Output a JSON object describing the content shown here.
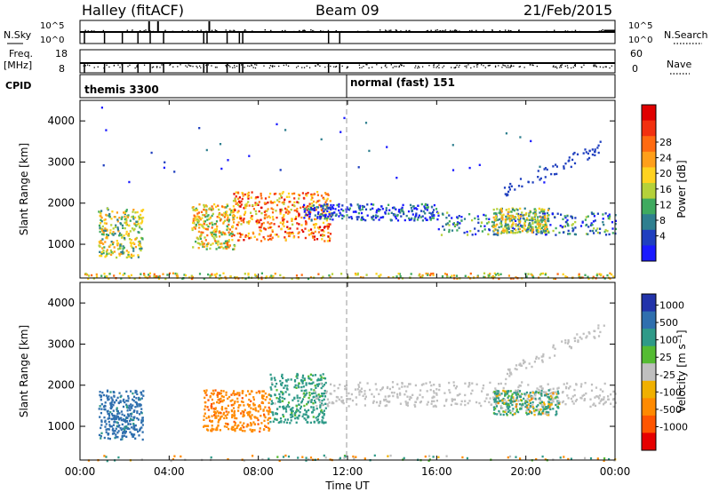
{
  "header": {
    "radar": "Halley (fitACF)",
    "beam": "Beam 09",
    "date": "21/Feb/2015"
  },
  "strips": {
    "nsky_label": "N.Sky",
    "nsky_ticks": [
      "10^5",
      "10^0"
    ],
    "nsearch_label": "N.Search",
    "nsearch_ticks": [
      "10^5",
      "10^0"
    ],
    "freq_label": "Freq.",
    "freq_unit": "[MHz]",
    "freq_ticks": [
      "18",
      "8"
    ],
    "nave_label": "Nave",
    "nave_ticks": [
      "60",
      "0"
    ],
    "cpid_label": "CPID",
    "cpid_segments": [
      {
        "name": "themis 3300",
        "start_h": 0.0
      },
      {
        "name": "normal (fast) 151",
        "start_h": 12.0
      }
    ]
  },
  "axes": {
    "xlabel": "Time UT",
    "x_ticks": [
      "00:00",
      "04:00",
      "08:00",
      "12:00",
      "16:00",
      "20:00",
      "00:00"
    ],
    "ylabel": "Slant Range [km]",
    "y_ticks": [
      "1000",
      "2000",
      "3000",
      "4000"
    ]
  },
  "colorbars": {
    "power": {
      "label": "Power [dB]",
      "ticks": [
        "4",
        "8",
        "12",
        "16",
        "20",
        "24",
        "28"
      ],
      "colors": [
        "#1a1aff",
        "#1f3fbf",
        "#2f7f8f",
        "#3faa5f",
        "#b5d13a",
        "#ffd21f",
        "#ff9f1a",
        "#ff6a10",
        "#f2300f",
        "#e00000"
      ]
    },
    "velocity": {
      "label": "Velocity [m s⁻¹]",
      "ticks": [
        "1000",
        "500",
        "100",
        "25",
        "-25",
        "-100",
        "-500",
        "-1000"
      ],
      "colors": [
        "#2233aa",
        "#2f6fae",
        "#2f9a88",
        "#55bb33",
        "#bfbfbf",
        "#f0b000",
        "#ff8a00",
        "#ff5500",
        "#e60000"
      ]
    }
  },
  "chart_data": [
    {
      "type": "heatmap",
      "title": "Power",
      "xlabel": "Time UT",
      "ylabel": "Slant Range [km]",
      "xlim": [
        0,
        24
      ],
      "ylim": [
        180,
        4500
      ],
      "colorbar_label": "Power [dB]",
      "colorbar_ticks": [
        4,
        8,
        12,
        16,
        20,
        24,
        28
      ],
      "regions": [
        {
          "t": [
            0.8,
            2.8
          ],
          "r": [
            700,
            1900
          ],
          "level": 0.45
        },
        {
          "t": [
            5.0,
            6.9
          ],
          "r": [
            900,
            2000
          ],
          "level": 0.55
        },
        {
          "t": [
            6.8,
            11.2
          ],
          "r": [
            1100,
            2300
          ],
          "level": 0.7
        },
        {
          "t": [
            10.0,
            16.0
          ],
          "r": [
            1600,
            2000
          ],
          "level": 0.15
        },
        {
          "t": [
            16.0,
            24.0
          ],
          "r": [
            1250,
            1800
          ],
          "level": 0.25
        },
        {
          "t": [
            18.5,
            21.0
          ],
          "r": [
            1300,
            1900
          ],
          "level": 0.45
        },
        {
          "t": [
            0.0,
            24.0
          ],
          "r": [
            180,
            320
          ],
          "level": 0.55
        }
      ]
    },
    {
      "type": "heatmap",
      "title": "Velocity",
      "xlabel": "Time UT",
      "ylabel": "Slant Range [km]",
      "xlim": [
        0,
        24
      ],
      "ylim": [
        180,
        4500
      ],
      "colorbar_label": "Velocity [m s⁻¹]",
      "colorbar_ticks": [
        1000,
        500,
        100,
        25,
        -25,
        -100,
        -500,
        -1000
      ],
      "regions": [
        {
          "t": [
            0.8,
            2.8
          ],
          "r": [
            700,
            1900
          ],
          "velocity": 400
        },
        {
          "t": [
            5.5,
            8.5
          ],
          "r": [
            900,
            1900
          ],
          "velocity": -200
        },
        {
          "t": [
            8.5,
            11.0
          ],
          "r": [
            1100,
            2300
          ],
          "velocity": 150
        },
        {
          "t": [
            10.5,
            24.0
          ],
          "r": [
            1500,
            2100
          ],
          "velocity": 0
        },
        {
          "t": [
            18.5,
            21.5
          ],
          "r": [
            1300,
            1900
          ],
          "velocity": 60
        }
      ]
    }
  ]
}
